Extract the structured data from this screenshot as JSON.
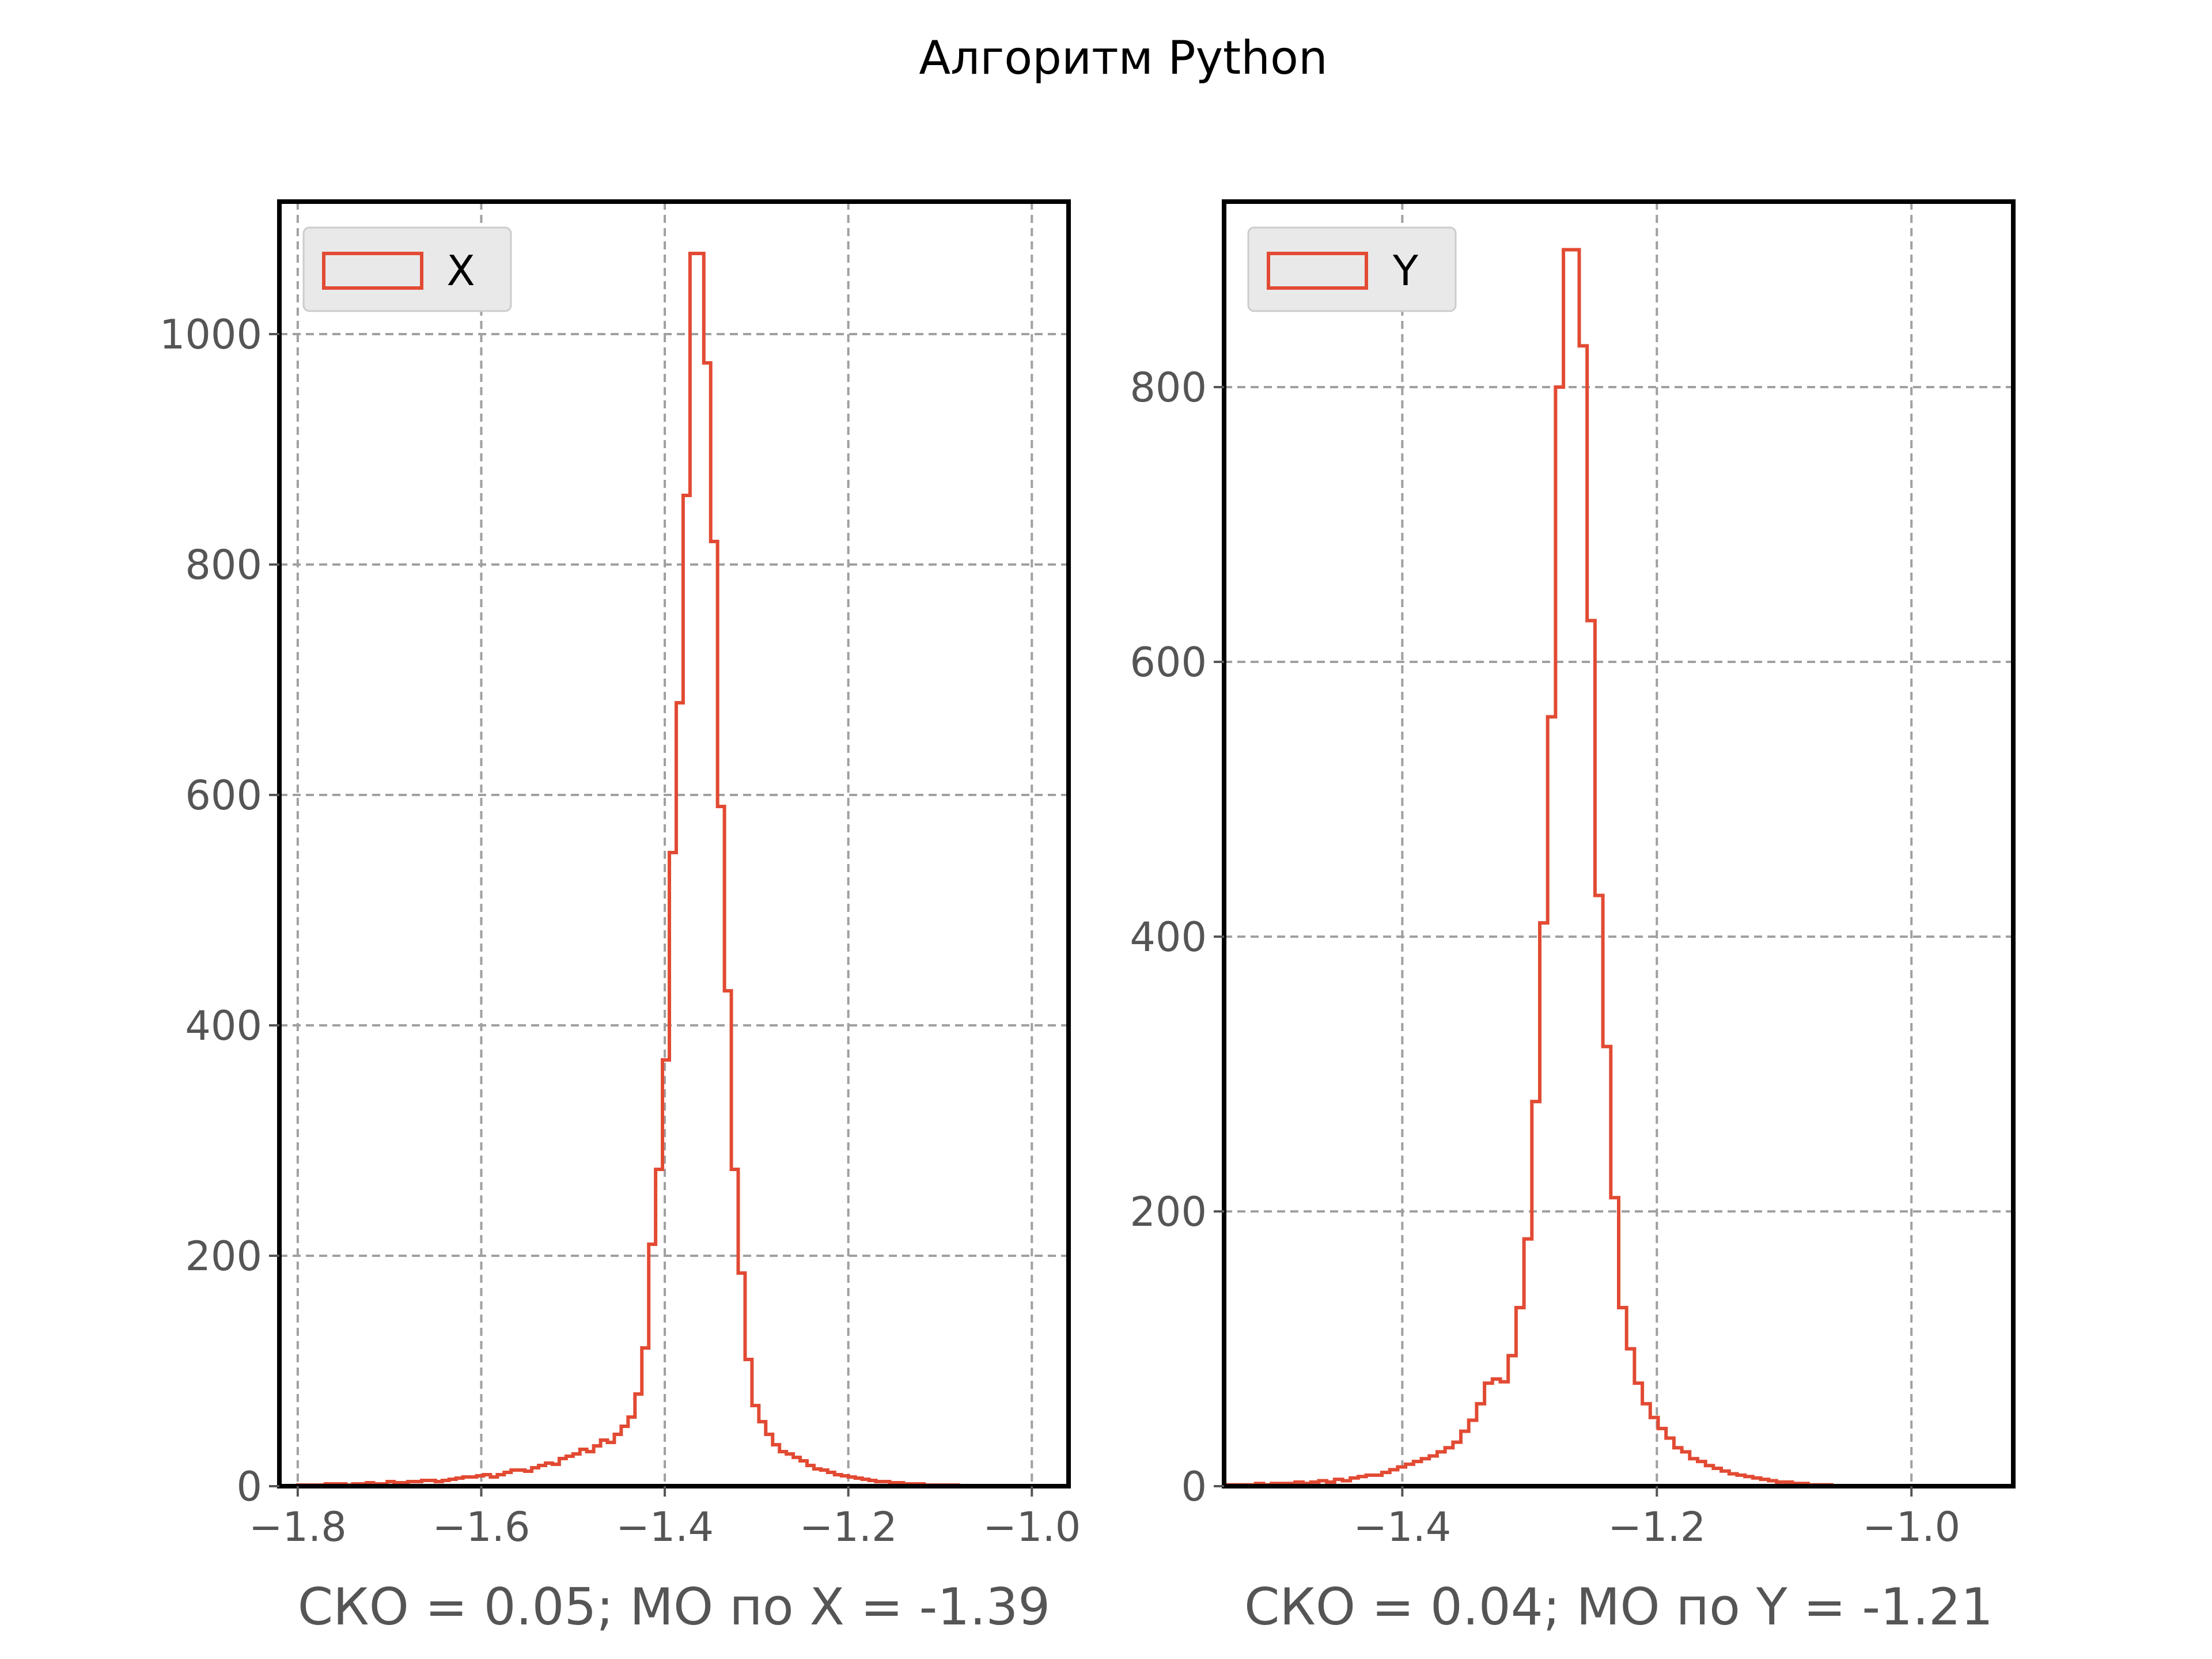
{
  "figure": {
    "suptitle": "Алгоритм Python"
  },
  "chart_data": [
    {
      "type": "histogram",
      "name": "X",
      "legend_label": "X",
      "legend_position": "upper-left",
      "xlabel": "СКО = 0.05; МО по X = -1.39",
      "ylabel": "",
      "xlim": [
        -1.82,
        -0.96
      ],
      "ylim": [
        0,
        1115
      ],
      "xticks": [
        -1.8,
        -1.6,
        -1.4,
        -1.2,
        -1.0
      ],
      "xtick_labels": [
        "−1.8",
        "−1.6",
        "−1.4",
        "−1.2",
        "−1.0"
      ],
      "yticks": [
        0,
        200,
        400,
        600,
        800,
        1000
      ],
      "ytick_labels": [
        "0",
        "200",
        "400",
        "600",
        "800",
        "1000"
      ],
      "grid": true,
      "color": "#e24a33",
      "legend_face": "#e9e9e9",
      "bin_start": -1.8,
      "bin_width": 0.0075,
      "counts": [
        1,
        1,
        1,
        1,
        2,
        2,
        2,
        1,
        2,
        2,
        3,
        2,
        2,
        4,
        3,
        3,
        4,
        4,
        5,
        5,
        4,
        5,
        6,
        7,
        8,
        8,
        9,
        10,
        8,
        10,
        12,
        14,
        14,
        13,
        16,
        18,
        20,
        19,
        24,
        26,
        28,
        32,
        30,
        35,
        40,
        38,
        45,
        52,
        60,
        80,
        120,
        210,
        275,
        370,
        550,
        680,
        860,
        1070,
        1070,
        975,
        820,
        590,
        430,
        275,
        185,
        110,
        70,
        56,
        45,
        36,
        30,
        28,
        25,
        22,
        18,
        15,
        14,
        12,
        10,
        9,
        8,
        7,
        6,
        5,
        4,
        4,
        3,
        3,
        2,
        2,
        2,
        1,
        1,
        1,
        1,
        1,
        0,
        0,
        0,
        0
      ]
    },
    {
      "type": "histogram",
      "name": "Y",
      "legend_label": "Y",
      "legend_position": "upper-left",
      "xlabel": "СКО = 0.04; МО по Y = -1.21",
      "ylabel": "",
      "xlim": [
        -1.54,
        -0.92
      ],
      "ylim": [
        0,
        935
      ],
      "xticks": [
        -1.4,
        -1.2,
        -1.0
      ],
      "xtick_labels": [
        "−1.4",
        "−1.2",
        "−1.0"
      ],
      "yticks": [
        0,
        200,
        400,
        600,
        800
      ],
      "ytick_labels": [
        "0",
        "200",
        "400",
        "600",
        "800"
      ],
      "grid": true,
      "color": "#e24a33",
      "legend_face": "#e9e9e9",
      "bin_start": -1.54,
      "bin_width": 0.0062,
      "counts": [
        1,
        1,
        1,
        1,
        2,
        1,
        2,
        2,
        2,
        3,
        2,
        3,
        4,
        3,
        5,
        4,
        6,
        7,
        8,
        8,
        10,
        12,
        14,
        16,
        18,
        20,
        22,
        25,
        28,
        32,
        40,
        48,
        60,
        75,
        78,
        76,
        95,
        130,
        180,
        280,
        410,
        560,
        800,
        900,
        900,
        830,
        630,
        430,
        320,
        210,
        130,
        100,
        75,
        60,
        50,
        42,
        35,
        28,
        25,
        20,
        18,
        15,
        13,
        11,
        9,
        8,
        7,
        6,
        5,
        4,
        3,
        3,
        2,
        2,
        1,
        1,
        1,
        0,
        0,
        0
      ]
    }
  ]
}
